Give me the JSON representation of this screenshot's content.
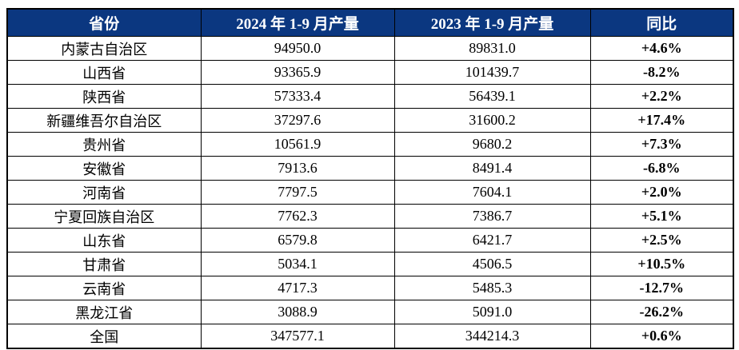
{
  "table": {
    "columns": [
      {
        "label": "省份"
      },
      {
        "label": "2024 年 1-9 月产量"
      },
      {
        "label": "2023 年 1-9 月产量"
      },
      {
        "label": "同比"
      }
    ],
    "rows": [
      {
        "province": "内蒙古自治区",
        "prod_2024": "94950.0",
        "prod_2023": "89831.0",
        "yoy": "+4.6%",
        "trend": "up"
      },
      {
        "province": "山西省",
        "prod_2024": "93365.9",
        "prod_2023": "101439.7",
        "yoy": "-8.2%",
        "trend": "down"
      },
      {
        "province": "陕西省",
        "prod_2024": "57333.4",
        "prod_2023": "56439.1",
        "yoy": "+2.2%",
        "trend": "up"
      },
      {
        "province": "新疆维吾尔自治区",
        "prod_2024": "37297.6",
        "prod_2023": "31600.2",
        "yoy": "+17.4%",
        "trend": "up"
      },
      {
        "province": "贵州省",
        "prod_2024": "10561.9",
        "prod_2023": "9680.2",
        "yoy": "+7.3%",
        "trend": "up"
      },
      {
        "province": "安徽省",
        "prod_2024": "7913.6",
        "prod_2023": "8491.4",
        "yoy": "-6.8%",
        "trend": "down"
      },
      {
        "province": "河南省",
        "prod_2024": "7797.5",
        "prod_2023": "7604.1",
        "yoy": "+2.0%",
        "trend": "up"
      },
      {
        "province": "宁夏回族自治区",
        "prod_2024": "7762.3",
        "prod_2023": "7386.7",
        "yoy": "+5.1%",
        "trend": "up"
      },
      {
        "province": "山东省",
        "prod_2024": "6579.8",
        "prod_2023": "6421.7",
        "yoy": "+2.5%",
        "trend": "up"
      },
      {
        "province": "甘肃省",
        "prod_2024": "5034.1",
        "prod_2023": "4506.5",
        "yoy": "+10.5%",
        "trend": "up"
      },
      {
        "province": "云南省",
        "prod_2024": "4717.3",
        "prod_2023": "5485.3",
        "yoy": "-12.7%",
        "trend": "down"
      },
      {
        "province": "黑龙江省",
        "prod_2024": "3088.9",
        "prod_2023": "5091.0",
        "yoy": "-26.2%",
        "trend": "down"
      },
      {
        "province": "全国",
        "prod_2024": "347577.1",
        "prod_2023": "344214.3",
        "yoy": "+0.6%",
        "trend": "up"
      }
    ]
  },
  "colors": {
    "header_bg": "#0b3780",
    "header_text": "#ffffff",
    "positive": "#fe0000",
    "negative": "#00b050",
    "grid": "#000000"
  },
  "chart_data": {
    "type": "table",
    "title": "",
    "columns": [
      "省份",
      "2024 年 1-9 月产量",
      "2023 年 1-9 月产量",
      "同比"
    ],
    "categories": [
      "内蒙古自治区",
      "山西省",
      "陕西省",
      "新疆维吾尔自治区",
      "贵州省",
      "安徽省",
      "河南省",
      "宁夏回族自治区",
      "山东省",
      "甘肃省",
      "云南省",
      "黑龙江省",
      "全国"
    ],
    "series": [
      {
        "name": "2024 年 1-9 月产量",
        "values": [
          94950.0,
          93365.9,
          57333.4,
          37297.6,
          10561.9,
          7913.6,
          7797.5,
          7762.3,
          6579.8,
          5034.1,
          4717.3,
          3088.9,
          347577.1
        ]
      },
      {
        "name": "2023 年 1-9 月产量",
        "values": [
          89831.0,
          101439.7,
          56439.1,
          31600.2,
          9680.2,
          8491.4,
          7604.1,
          7386.7,
          6421.7,
          4506.5,
          5485.3,
          5091.0,
          344214.3
        ]
      },
      {
        "name": "同比(%)",
        "values": [
          4.6,
          -8.2,
          2.2,
          17.4,
          7.3,
          -6.8,
          2.0,
          5.1,
          2.5,
          10.5,
          -12.7,
          -26.2,
          0.6
        ]
      }
    ]
  }
}
